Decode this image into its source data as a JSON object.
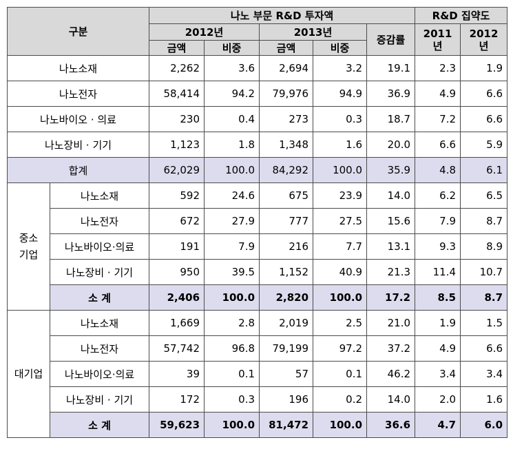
{
  "header": {
    "category": "구분",
    "investment": "나노 부문 R&D 투자액",
    "intensity": "R&D 집약도",
    "year_2012": "2012년",
    "year_2013": "2013년",
    "growth": "증감률",
    "int_2011": "2011\n년",
    "int_2012": "2012\n년",
    "amount": "금액",
    "share": "비중"
  },
  "overall": [
    {
      "label": "나노소재",
      "a12": "2,262",
      "s12": "3.6",
      "a13": "2,694",
      "s13": "3.2",
      "g": "19.1",
      "i11": "2.3",
      "i12": "1.9"
    },
    {
      "label": "나노전자",
      "a12": "58,414",
      "s12": "94.2",
      "a13": "79,976",
      "s13": "94.9",
      "g": "36.9",
      "i11": "4.9",
      "i12": "6.6"
    },
    {
      "label": "나노바이오 · 의료",
      "a12": "230",
      "s12": "0.4",
      "a13": "273",
      "s13": "0.3",
      "g": "18.7",
      "i11": "7.2",
      "i12": "6.6"
    },
    {
      "label": "나노장비 · 기기",
      "a12": "1,123",
      "s12": "1.8",
      "a13": "1,348",
      "s13": "1.6",
      "g": "20.0",
      "i11": "6.6",
      "i12": "5.9"
    }
  ],
  "total": {
    "label": "합계",
    "a12": "62,029",
    "s12": "100.0",
    "a13": "84,292",
    "s13": "100.0",
    "g": "35.9",
    "i11": "4.8",
    "i12": "6.1"
  },
  "sme": {
    "group": "중소\n기업",
    "rows": [
      {
        "label": "나노소재",
        "a12": "592",
        "s12": "24.6",
        "a13": "675",
        "s13": "23.9",
        "g": "14.0",
        "i11": "6.2",
        "i12": "6.5"
      },
      {
        "label": "나노전자",
        "a12": "672",
        "s12": "27.9",
        "a13": "777",
        "s13": "27.5",
        "g": "15.6",
        "i11": "7.9",
        "i12": "8.7"
      },
      {
        "label": "나노바이오·의료",
        "a12": "191",
        "s12": "7.9",
        "a13": "216",
        "s13": "7.7",
        "g": "13.1",
        "i11": "9.3",
        "i12": "8.9"
      },
      {
        "label": "나노장비 · 기기",
        "a12": "950",
        "s12": "39.5",
        "a13": "1,152",
        "s13": "40.9",
        "g": "21.3",
        "i11": "11.4",
        "i12": "10.7"
      }
    ],
    "subtotal": {
      "label": "소 계",
      "a12": "2,406",
      "s12": "100.0",
      "a13": "2,820",
      "s13": "100.0",
      "g": "17.2",
      "i11": "8.5",
      "i12": "8.7"
    }
  },
  "large": {
    "group": "대기업",
    "rows": [
      {
        "label": "나노소재",
        "a12": "1,669",
        "s12": "2.8",
        "a13": "2,019",
        "s13": "2.5",
        "g": "21.0",
        "i11": "1.9",
        "i12": "1.5"
      },
      {
        "label": "나노전자",
        "a12": "57,742",
        "s12": "96.8",
        "a13": "79,199",
        "s13": "97.2",
        "g": "37.2",
        "i11": "4.9",
        "i12": "6.6"
      },
      {
        "label": "나노바이오·의료",
        "a12": "39",
        "s12": "0.1",
        "a13": "57",
        "s13": "0.1",
        "g": "46.2",
        "i11": "3.4",
        "i12": "3.4"
      },
      {
        "label": "나노장비 · 기기",
        "a12": "172",
        "s12": "0.3",
        "a13": "196",
        "s13": "0.2",
        "g": "14.0",
        "i11": "2.0",
        "i12": "1.6"
      }
    ],
    "subtotal": {
      "label": "소 계",
      "a12": "59,623",
      "s12": "100.0",
      "a13": "81,472",
      "s13": "100.0",
      "g": "36.6",
      "i11": "4.7",
      "i12": "6.0"
    }
  }
}
